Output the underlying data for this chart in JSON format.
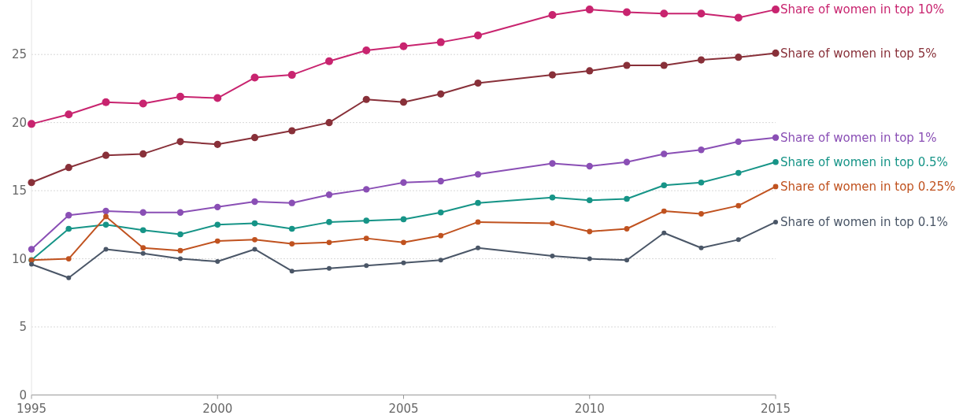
{
  "chart_data": {
    "type": "line",
    "x": [
      1995,
      1996,
      1997,
      1998,
      1999,
      2000,
      2001,
      2002,
      2003,
      2004,
      2005,
      2006,
      2007,
      2009,
      2010,
      2011,
      2012,
      2013,
      2014,
      2015
    ],
    "series": [
      {
        "name": "Share of women in top 10%",
        "color": "#c8246f",
        "values": [
          19.9,
          20.6,
          21.5,
          21.4,
          21.9,
          21.8,
          23.3,
          23.5,
          24.5,
          25.3,
          25.6,
          25.9,
          26.4,
          27.9,
          28.3,
          28.1,
          28.0,
          28.0,
          27.7,
          28.3
        ]
      },
      {
        "name": "Share of women in top 5%",
        "color": "#883039",
        "values": [
          15.6,
          16.7,
          17.6,
          17.7,
          18.6,
          18.4,
          18.9,
          19.4,
          20.0,
          21.7,
          21.5,
          22.1,
          22.9,
          23.5,
          23.8,
          24.2,
          24.2,
          24.6,
          24.8,
          25.1
        ]
      },
      {
        "name": "Share of women in top 1%",
        "color": "#8a4fb5",
        "values": [
          10.7,
          13.2,
          13.5,
          13.4,
          13.4,
          13.8,
          14.2,
          14.1,
          14.7,
          15.1,
          15.6,
          15.7,
          16.2,
          17.0,
          16.8,
          17.1,
          17.7,
          18.0,
          18.6,
          18.9
        ]
      },
      {
        "name": "Share of women in top 0.5%",
        "color": "#169487",
        "values": [
          9.9,
          12.2,
          12.5,
          12.1,
          11.8,
          12.5,
          12.6,
          12.2,
          12.7,
          12.8,
          12.9,
          13.4,
          14.1,
          14.5,
          14.3,
          14.4,
          15.4,
          15.6,
          16.3,
          17.1
        ]
      },
      {
        "name": "Share of women in top 0.25%",
        "color": "#c0521f",
        "values": [
          9.9,
          10.0,
          13.1,
          10.8,
          10.6,
          11.3,
          11.4,
          11.1,
          11.2,
          11.5,
          11.2,
          11.7,
          12.7,
          12.6,
          12.0,
          12.2,
          13.5,
          13.3,
          13.9,
          15.3
        ]
      },
      {
        "name": "Share of women in top 0.1%",
        "color": "#4a5667",
        "values": [
          9.6,
          8.6,
          10.7,
          10.4,
          10.0,
          9.8,
          10.7,
          9.1,
          9.3,
          9.5,
          9.7,
          9.9,
          10.8,
          10.2,
          10.0,
          9.9,
          11.9,
          10.8,
          11.4,
          12.7
        ]
      }
    ],
    "xlim": [
      1995,
      2015
    ],
    "xticks": [
      1995,
      2000,
      2005,
      2010,
      2015
    ],
    "ylim": [
      0,
      29
    ],
    "yticks": [
      0,
      5,
      10,
      15,
      20,
      25
    ],
    "grid": "y",
    "marker": "circle",
    "line_style": "solid"
  }
}
